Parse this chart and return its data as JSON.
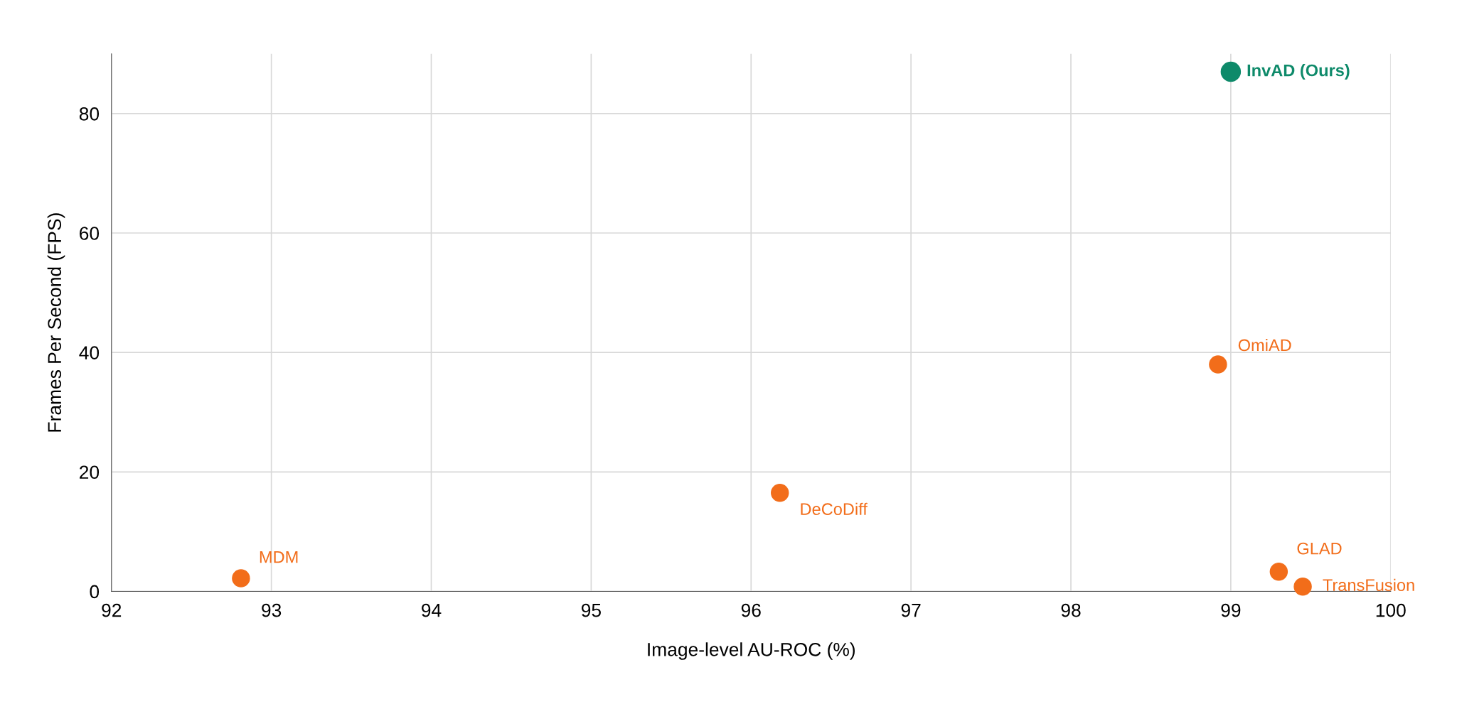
{
  "chart_data": {
    "type": "scatter",
    "xlabel": "Image-level AU-ROC (%)",
    "ylabel": "Frames Per Second (FPS)",
    "xlim": [
      92,
      100
    ],
    "xticks": [
      92,
      93,
      94,
      95,
      96,
      97,
      98,
      99,
      100
    ],
    "ylim": [
      0,
      90
    ],
    "yticks": [
      0,
      20,
      40,
      60,
      80
    ],
    "grid": true,
    "marker": "circle",
    "series": [
      {
        "name": "InvAD (Ours)",
        "color": "#0e8a6a",
        "x": [
          99.0
        ],
        "values": [
          87.0
        ]
      },
      {
        "name": "OmiAD",
        "color": "#f26d1a",
        "x": [
          98.92
        ],
        "values": [
          38.0
        ]
      },
      {
        "name": "DeCoDiff",
        "color": "#f26d1a",
        "x": [
          96.18
        ],
        "values": [
          16.5
        ]
      },
      {
        "name": "MDM",
        "color": "#f26d1a",
        "x": [
          92.81
        ],
        "values": [
          2.2
        ]
      },
      {
        "name": "GLAD",
        "color": "#f26d1a",
        "x": [
          99.3
        ],
        "values": [
          3.3
        ]
      },
      {
        "name": "TransFusion",
        "color": "#f26d1a",
        "x": [
          99.45
        ],
        "values": [
          0.8
        ]
      }
    ]
  }
}
